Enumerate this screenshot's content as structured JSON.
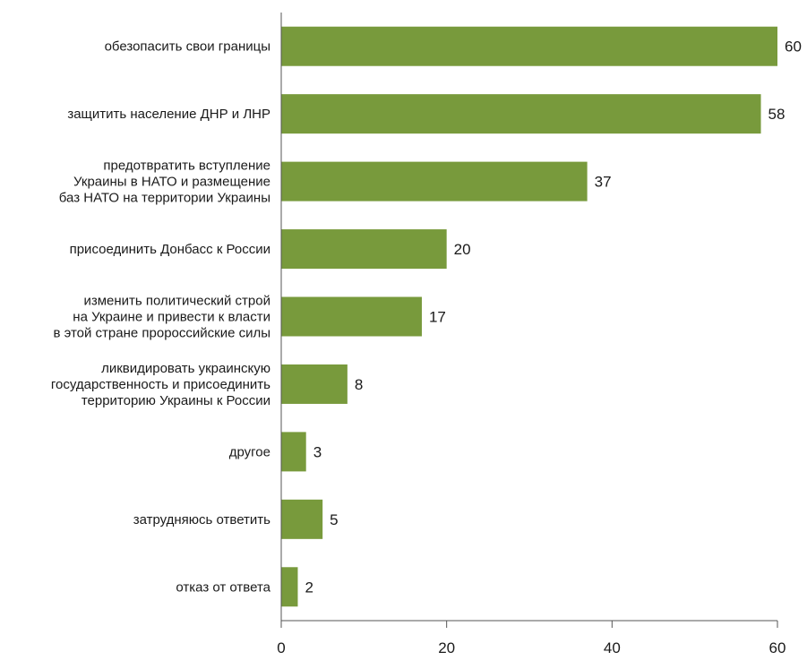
{
  "chart_data": {
    "type": "bar",
    "orientation": "horizontal",
    "categories": [
      [
        "обезопасить свои границы"
      ],
      [
        "защитить население ДНР и ЛНР"
      ],
      [
        "предотвратить вступление",
        "Украины в НАТО и размещение",
        "баз НАТО на территории Украины"
      ],
      [
        "присоединить Донбасс к России"
      ],
      [
        "изменить политический строй",
        "на Украине и привести к власти",
        "в этой стране пророссийские силы"
      ],
      [
        "ликвидировать украинскую",
        "государственность и присоединить",
        "территорию Украины к России"
      ],
      [
        "другое"
      ],
      [
        "затрудняюсь ответить"
      ],
      [
        "отказ от ответа"
      ]
    ],
    "values": [
      60,
      58,
      37,
      20,
      17,
      8,
      3,
      5,
      2
    ],
    "value_labels": [
      "60",
      "58",
      "37",
      "20",
      "17",
      "8",
      "3",
      "5",
      "2"
    ],
    "xlim": [
      0,
      60
    ],
    "xticks": [
      0,
      20,
      40,
      60
    ],
    "xtick_labels": [
      "0",
      "20",
      "40",
      "60"
    ],
    "grid": false,
    "title": "",
    "xlabel": "",
    "ylabel": "",
    "bar_color": "#789a3c"
  }
}
